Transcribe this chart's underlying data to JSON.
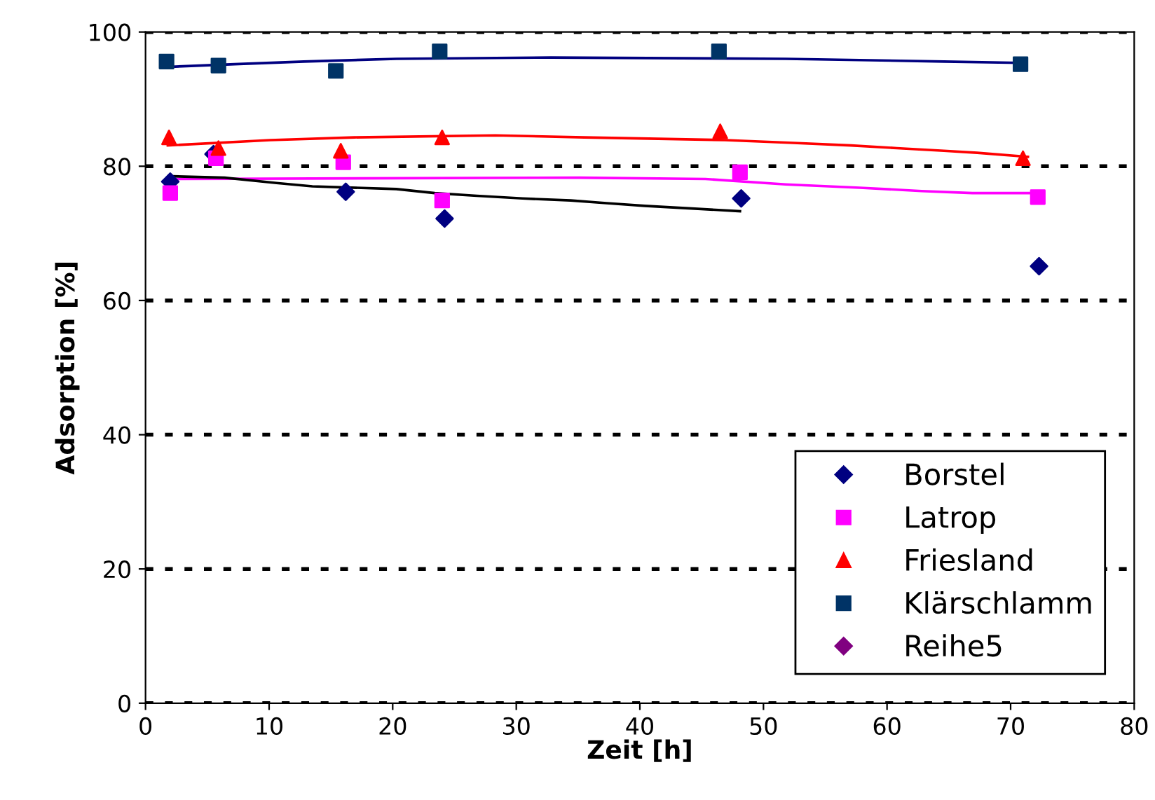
{
  "chart_data": {
    "type": "scatter",
    "xlabel": "Zeit [h]",
    "ylabel": "Adsorption [%]",
    "xlim": [
      0,
      80
    ],
    "ylim": [
      0,
      100
    ],
    "xticks": [
      0,
      10,
      20,
      30,
      40,
      50,
      60,
      70,
      80
    ],
    "yticks": [
      0,
      20,
      40,
      60,
      80,
      100
    ],
    "grid": "y",
    "legend": "bottom right",
    "series": [
      {
        "name": "Borstel",
        "color": "#000080",
        "marker": "diamond",
        "x": [
          2.0,
          5.5,
          16.2,
          24.2,
          48.2,
          72.3
        ],
        "values": [
          77.7,
          81.8,
          76.2,
          72.2,
          75.2,
          65.1
        ]
      },
      {
        "name": "Latrop",
        "color": "#ff00ff",
        "marker": "square",
        "x": [
          2.0,
          5.7,
          16.0,
          24.0,
          48.1,
          72.2
        ],
        "values": [
          76.0,
          81.2,
          80.6,
          74.9,
          79.1,
          75.4
        ]
      },
      {
        "name": "Friesland",
        "color": "#ff0000",
        "marker": "triangle",
        "x": [
          1.9,
          5.9,
          15.8,
          24.0,
          46.5,
          71.0
        ],
        "values": [
          84.3,
          82.7,
          82.3,
          84.3,
          85.2,
          81.2
        ]
      },
      {
        "name": "Klärschlamm",
        "color": "#003366",
        "marker": "square",
        "x": [
          1.7,
          5.9,
          15.4,
          23.8,
          46.4,
          70.8
        ],
        "values": [
          95.6,
          95.0,
          94.2,
          97.1,
          97.1,
          95.2
        ]
      },
      {
        "name": "Reihe5",
        "color": "#800080",
        "marker": "diamond"
      },
      {
        "type": "line",
        "color": "#000080",
        "x": [
          1.8,
          7.2,
          12.8,
          20.3,
          32.8,
          51.8,
          64.6,
          70.7
        ],
        "values": [
          94.8,
          95.2,
          95.6,
          96.0,
          96.2,
          96.0,
          95.6,
          95.4
        ]
      },
      {
        "type": "line",
        "color": "#ff0000",
        "x": [
          1.8,
          10.1,
          16.9,
          28.3,
          35.5,
          46.9,
          52.1,
          57.1,
          60.8,
          64.6,
          67.3,
          71.4
        ],
        "values": [
          83.1,
          83.9,
          84.3,
          84.6,
          84.3,
          83.9,
          83.5,
          83.1,
          82.7,
          82.3,
          82.0,
          81.4
        ]
      },
      {
        "type": "line",
        "color": "#ff00ff",
        "x": [
          1.8,
          35.1,
          45.3,
          51.8,
          57.8,
          62.8,
          66.9,
          71.9
        ],
        "values": [
          78.1,
          78.3,
          78.1,
          77.3,
          76.8,
          76.3,
          76.0,
          76.0
        ]
      },
      {
        "type": "line",
        "color": "#000000",
        "x": [
          2.2,
          6.4,
          10.6,
          13.5,
          20.3,
          23.4,
          26.8,
          30.5,
          34.4,
          37.3,
          40.4,
          44.2,
          48.1
        ],
        "values": [
          78.5,
          78.3,
          77.5,
          77.0,
          76.6,
          76.0,
          75.6,
          75.2,
          74.9,
          74.5,
          74.1,
          73.7,
          73.3
        ]
      }
    ]
  }
}
